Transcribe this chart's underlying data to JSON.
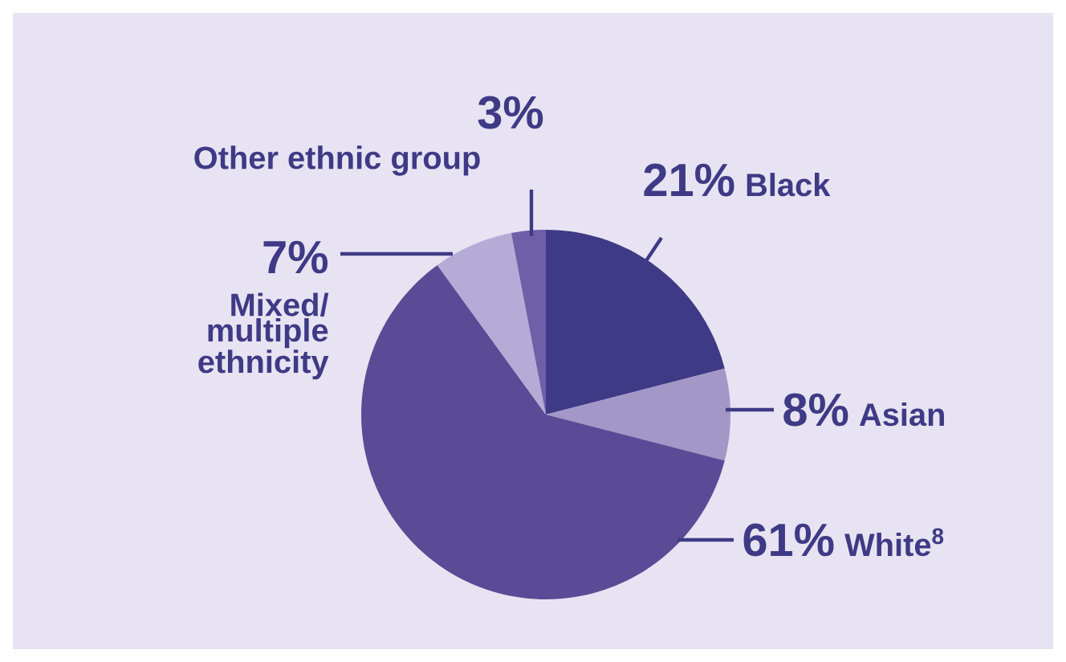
{
  "chart_data": {
    "type": "pie",
    "categories": [
      "Black",
      "Asian",
      "White$^{8}$",
      "Mixed/ multiple ethnicity",
      "Other ethnic group"
    ],
    "values": [
      21,
      8,
      61,
      7,
      3
    ],
    "value_labels": [
      "21%",
      "8%",
      "61%",
      "7%",
      "3%"
    ],
    "colors": [
      "#3f3a85",
      "#a397c8",
      "#5a4b96",
      "#b5abd6",
      "#6e5fa8"
    ]
  }
}
